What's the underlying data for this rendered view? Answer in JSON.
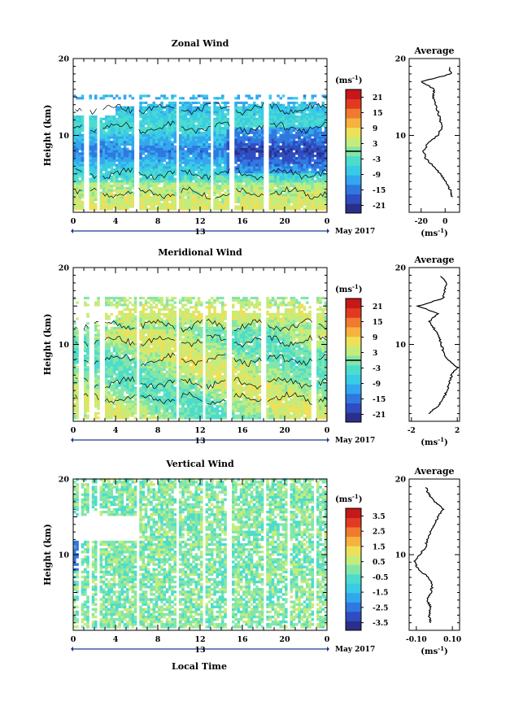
{
  "figure": {
    "xlabel": "Local Time",
    "date_label": "May 2017",
    "day_label": "13",
    "colorbar_unit": "(ms",
    "colorbar_unit_exp": "-1",
    "colorbar_unit_close": ")",
    "profile_title": "Average"
  },
  "colors": {
    "colormap": [
      "#2a2f8a",
      "#2f4cc0",
      "#2f78e0",
      "#34a6ee",
      "#39cbe6",
      "#4ddccc",
      "#83e6a8",
      "#c4ec7c",
      "#eee058",
      "#f6b23e",
      "#f07a2e",
      "#e23a22",
      "#c51818"
    ],
    "contour": "#000000",
    "axis": "#000000"
  },
  "chart_data": [
    {
      "type": "heatmap",
      "title": "Zonal Wind",
      "ylabel": "Height (km)",
      "xlabel": "Local Time",
      "x_ticks": [
        "0",
        "4",
        "8",
        "12",
        "16",
        "20",
        "0"
      ],
      "y_ticks": [
        "20",
        "10"
      ],
      "ylim": [
        0,
        20
      ],
      "xlim": [
        0,
        24
      ],
      "colorbar": {
        "ticks": [
          "21",
          "15",
          "9",
          "3",
          "-3",
          "-9",
          "-15",
          "-21"
        ],
        "range": [
          -24,
          24
        ],
        "zero_line": true
      },
      "data_gaps_hours": [
        [
          1.0,
          1.4
        ],
        [
          2.2,
          2.6
        ],
        [
          5.8,
          6.2
        ],
        [
          9.7,
          10.1
        ],
        [
          13.0,
          13.3
        ],
        [
          14.8,
          15.3
        ],
        [
          18.1,
          18.5
        ]
      ],
      "profile": {
        "title": "Average",
        "x_ticks": [
          "-20",
          "0"
        ],
        "y_ticks": [
          "20",
          "10"
        ],
        "xlim": [
          -30,
          12
        ],
        "heights_km": [
          2,
          3,
          4,
          5,
          6,
          7,
          8,
          9,
          10,
          11,
          12,
          13,
          14,
          15,
          16,
          17,
          18,
          19
        ],
        "values": [
          6,
          4,
          0,
          -4,
          -10,
          -16,
          -18,
          -14,
          -6,
          -3,
          -4,
          -6,
          -8,
          -10,
          -9,
          -20,
          5,
          3
        ]
      }
    },
    {
      "type": "heatmap",
      "title": "Meridional Wind",
      "ylabel": "Height (km)",
      "xlabel": "Local Time",
      "x_ticks": [
        "0",
        "4",
        "8",
        "12",
        "16",
        "20",
        "0"
      ],
      "y_ticks": [
        "20",
        "10"
      ],
      "ylim": [
        0,
        20
      ],
      "xlim": [
        0,
        24
      ],
      "colorbar": {
        "ticks": [
          "21",
          "15",
          "9",
          "3",
          "-3",
          "-9",
          "-15",
          "-21"
        ],
        "range": [
          -24,
          24
        ],
        "zero_line": true
      },
      "data_gaps_hours": [
        [
          0.6,
          0.9
        ],
        [
          1.5,
          1.9
        ],
        [
          2.6,
          3.0
        ],
        [
          6.0,
          6.3
        ],
        [
          9.7,
          10.0
        ],
        [
          12.2,
          12.5
        ],
        [
          14.5,
          15.0
        ],
        [
          17.8,
          18.2
        ],
        [
          22.6,
          23.0
        ]
      ],
      "profile": {
        "title": "Average",
        "x_ticks": [
          "-2",
          "2"
        ],
        "y_ticks": [
          "20",
          "10"
        ],
        "xlim": [
          -2.2,
          2.2
        ],
        "heights_km": [
          1,
          2,
          3,
          4,
          5,
          6,
          7,
          8,
          9,
          10,
          11,
          12,
          13,
          14,
          15,
          16,
          17,
          18,
          19
        ],
        "values": [
          -0.5,
          0.3,
          0.8,
          1.1,
          1.3,
          1.5,
          2.0,
          1.2,
          0.8,
          0.6,
          0.4,
          0.0,
          -0.4,
          0.3,
          -1.4,
          0.8,
          0.9,
          1.1,
          0.5
        ]
      }
    },
    {
      "type": "heatmap",
      "title": "Vertical Wind",
      "ylabel": "Height (km)",
      "xlabel": "Local Time",
      "x_ticks": [
        "0",
        "4",
        "8",
        "12",
        "16",
        "20",
        "0"
      ],
      "y_ticks": [
        "20",
        "10"
      ],
      "ylim": [
        0,
        20
      ],
      "xlim": [
        0,
        24
      ],
      "colorbar": {
        "ticks": [
          "3.5",
          "2.5",
          "1.5",
          "0.5",
          "-0.5",
          "-1.5",
          "-2.5",
          "-3.5"
        ],
        "range": [
          -4,
          4
        ],
        "zero_line": false
      },
      "data_gaps_hours": [
        [
          0.6,
          0.8
        ],
        [
          1.5,
          1.7
        ],
        [
          2.2,
          2.5
        ],
        [
          6.0,
          6.3
        ],
        [
          9.8,
          10.0
        ],
        [
          12.3,
          12.5
        ],
        [
          14.5,
          15.0
        ],
        [
          18.0,
          18.3
        ],
        [
          20.3,
          20.6
        ],
        [
          22.8,
          23.0
        ]
      ],
      "profile": {
        "title": "Average",
        "x_ticks": [
          "-0.10",
          "0.10"
        ],
        "y_ticks": [
          "20",
          "10"
        ],
        "xlim": [
          -0.14,
          0.14
        ],
        "heights_km": [
          1,
          2,
          3,
          4,
          5,
          6,
          7,
          8,
          9,
          10,
          11,
          12,
          13,
          14,
          15,
          16,
          17,
          18,
          19
        ],
        "values": [
          -0.02,
          -0.03,
          -0.02,
          -0.04,
          -0.02,
          -0.01,
          -0.03,
          -0.09,
          -0.11,
          -0.08,
          -0.05,
          -0.04,
          -0.02,
          0.0,
          0.02,
          0.05,
          0.0,
          -0.03,
          -0.05
        ]
      }
    }
  ]
}
